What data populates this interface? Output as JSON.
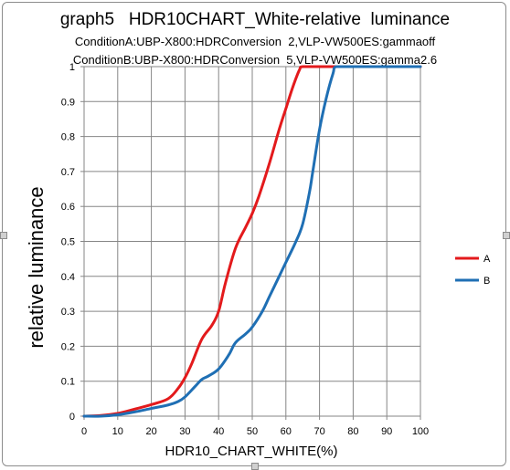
{
  "chart_data": {
    "type": "line",
    "title": "graph5   HDR10CHART_White-relative  luminance",
    "subtitle_lines": [
      "ConditionA:UBP-X800:HDRConversion  2,VLP-VW500ES:gammaoff",
      "ConditionB:UBP-X800:HDRConversion  5,VLP-VW500ES:gamma2.6"
    ],
    "xlabel": "HDR10_CHART_WHITE(%)",
    "ylabel": "relative luminance",
    "xlim": [
      0,
      100
    ],
    "ylim": [
      0,
      1
    ],
    "x_ticks": [
      "0",
      "10",
      "20",
      "30",
      "40",
      "50",
      "60",
      "70",
      "80",
      "90",
      "100"
    ],
    "y_ticks": [
      "0",
      "0.1",
      "0.2",
      "0.3",
      "0.4",
      "0.5",
      "0.6",
      "0.7",
      "0.8",
      "0.9",
      "1"
    ],
    "grid": true,
    "legend_position": "right",
    "series": [
      {
        "name": "A",
        "color": "#e31a1c",
        "x": [
          0,
          5,
          10,
          15,
          20,
          25,
          28,
          30,
          32,
          35,
          38,
          40,
          42,
          45,
          48,
          50,
          52,
          55,
          58,
          60,
          62,
          64,
          65,
          70,
          75,
          80,
          90,
          100
        ],
        "y": [
          0,
          0.002,
          0.008,
          0.02,
          0.033,
          0.05,
          0.08,
          0.11,
          0.15,
          0.22,
          0.26,
          0.3,
          0.38,
          0.48,
          0.54,
          0.58,
          0.63,
          0.72,
          0.82,
          0.88,
          0.94,
          0.99,
          1.0,
          1.0,
          1.0,
          1.0,
          1.0,
          1.0
        ]
      },
      {
        "name": "B",
        "color": "#1f6fb4",
        "x": [
          0,
          5,
          10,
          15,
          20,
          25,
          28,
          30,
          33,
          35,
          37,
          40,
          43,
          45,
          48,
          50,
          53,
          55,
          58,
          60,
          63,
          65,
          67,
          68,
          70,
          72,
          74,
          75,
          80,
          90,
          100
        ],
        "y": [
          0,
          0,
          0.004,
          0.012,
          0.022,
          0.032,
          0.042,
          0.055,
          0.085,
          0.105,
          0.115,
          0.135,
          0.175,
          0.21,
          0.235,
          0.255,
          0.3,
          0.34,
          0.4,
          0.44,
          0.5,
          0.55,
          0.64,
          0.7,
          0.82,
          0.91,
          0.98,
          1.0,
          1.0,
          1.0,
          1.0
        ]
      }
    ]
  }
}
